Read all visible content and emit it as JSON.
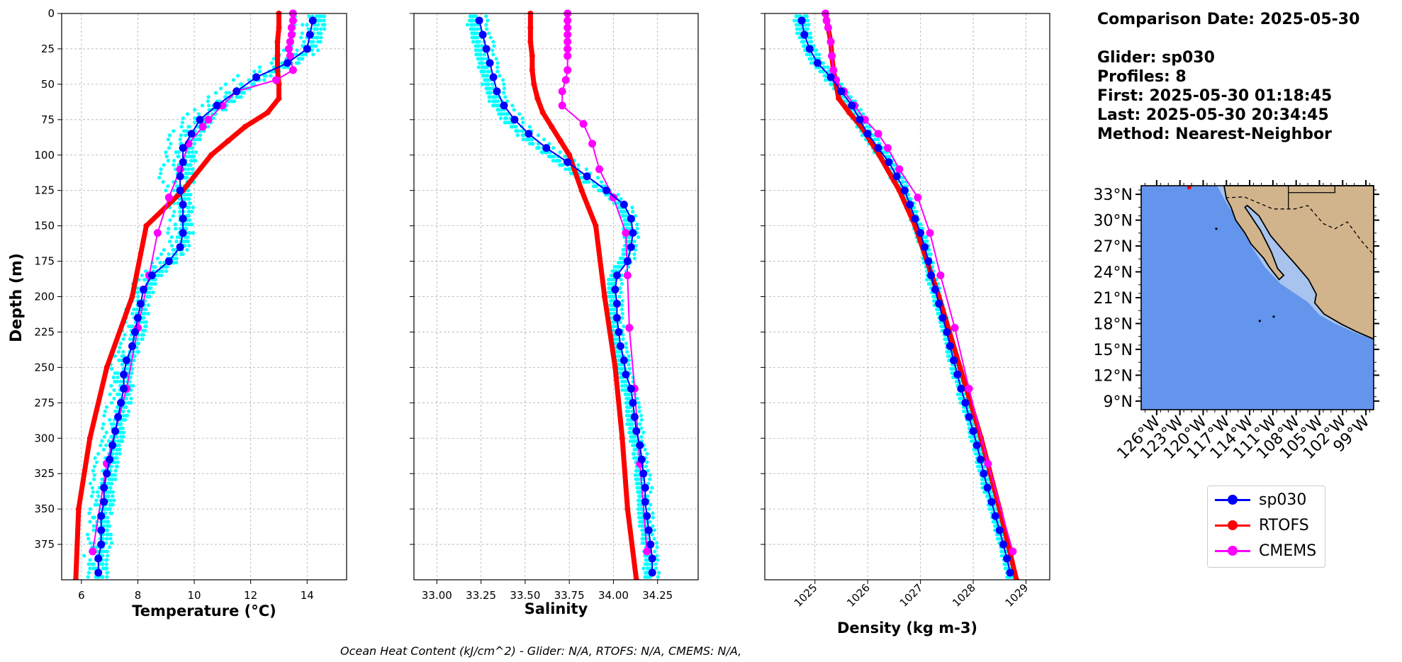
{
  "info": {
    "comparison_date": "Comparison Date: 2025-05-30",
    "glider": "Glider: sp030",
    "profiles": "Profiles: 8",
    "first": "First: 2025-05-30 01:18:45",
    "last": "Last: 2025-05-30 20:34:45",
    "method": "Method: Nearest-Neighbor"
  },
  "footnote": "Ocean Heat Content (kJ/cm^2) - Glider: N/A,  RTOFS: N/A,  CMEMS: N/A,",
  "legend": [
    {
      "name": "sp030",
      "color": "#0000ff"
    },
    {
      "name": "RTOFS",
      "color": "#ff0000"
    },
    {
      "name": "CMEMS",
      "color": "#ff00ff"
    }
  ],
  "colors": {
    "glider_raw": "#00ffff",
    "ocean": "#6495ed",
    "land": "#d2b48c",
    "shelf": "#a8c4ee"
  },
  "chart_data": [
    {
      "type": "line",
      "xlabel": "Temperature (°C)",
      "ylabel": "Depth (m)",
      "xlim": [
        5.3,
        15.4
      ],
      "ylim": [
        400,
        0
      ],
      "x_ticks": [
        "6",
        "8",
        "10",
        "12",
        "14"
      ],
      "y_ticks": [
        "0",
        "25",
        "50",
        "75",
        "100",
        "125",
        "150",
        "175",
        "200",
        "225",
        "250",
        "275",
        "300",
        "325",
        "350",
        "375"
      ],
      "grid": true,
      "series": [
        {
          "name": "RTOFS",
          "depth": [
            0,
            10,
            20,
            30,
            40,
            50,
            60,
            70,
            80,
            90,
            100,
            125,
            150,
            200,
            250,
            300,
            350,
            400
          ],
          "values": [
            13.0,
            13.0,
            12.95,
            12.95,
            12.95,
            13.0,
            13.0,
            12.6,
            11.8,
            11.2,
            10.6,
            9.6,
            8.3,
            7.8,
            6.9,
            6.3,
            5.9,
            5.8
          ]
        },
        {
          "name": "sp030",
          "depth": [
            5,
            15,
            25,
            35,
            45,
            55,
            65,
            75,
            85,
            95,
            105,
            115,
            125,
            135,
            145,
            155,
            165,
            175,
            185,
            195,
            205,
            215,
            225,
            235,
            245,
            255,
            265,
            275,
            285,
            295,
            305,
            315,
            325,
            335,
            345,
            355,
            365,
            375,
            385,
            395
          ],
          "values": [
            14.2,
            14.1,
            14.0,
            13.3,
            12.2,
            11.5,
            10.8,
            10.2,
            9.9,
            9.6,
            9.6,
            9.5,
            9.5,
            9.6,
            9.6,
            9.6,
            9.5,
            9.1,
            8.5,
            8.2,
            8.1,
            8.0,
            7.9,
            7.8,
            7.6,
            7.5,
            7.5,
            7.4,
            7.3,
            7.2,
            7.1,
            7.0,
            6.9,
            6.8,
            6.8,
            6.7,
            6.7,
            6.7,
            6.6,
            6.6
          ]
        },
        {
          "name": "CMEMS",
          "depth": [
            0,
            5,
            10,
            15,
            20,
            25,
            30,
            40,
            47,
            55,
            65,
            75,
            80,
            92,
            110,
            130,
            155,
            185,
            222,
            265,
            318,
            380
          ],
          "values": [
            13.5,
            13.5,
            13.45,
            13.45,
            13.4,
            13.35,
            13.4,
            13.5,
            12.9,
            11.5,
            11.0,
            10.5,
            10.3,
            9.8,
            9.5,
            9.1,
            8.7,
            8.4,
            8.0,
            7.6,
            6.9,
            6.4
          ]
        }
      ]
    },
    {
      "type": "line",
      "xlabel": "Salinity",
      "xlim": [
        32.87,
        34.48
      ],
      "ylim": [
        400,
        0
      ],
      "x_ticks": [
        "33.00",
        "33.25",
        "33.50",
        "33.75",
        "34.00",
        "34.25"
      ],
      "grid": true,
      "series": [
        {
          "name": "RTOFS",
          "depth": [
            0,
            10,
            20,
            30,
            40,
            50,
            60,
            70,
            80,
            90,
            100,
            125,
            150,
            200,
            250,
            300,
            350,
            400
          ],
          "values": [
            33.53,
            33.53,
            33.53,
            33.54,
            33.54,
            33.55,
            33.57,
            33.6,
            33.65,
            33.7,
            33.75,
            33.82,
            33.9,
            33.95,
            34.01,
            34.05,
            34.08,
            34.13
          ]
        },
        {
          "name": "sp030",
          "depth": [
            5,
            15,
            25,
            35,
            45,
            55,
            65,
            75,
            85,
            95,
            105,
            115,
            125,
            135,
            145,
            155,
            165,
            175,
            185,
            195,
            205,
            215,
            225,
            235,
            245,
            255,
            265,
            275,
            285,
            295,
            305,
            315,
            325,
            335,
            345,
            355,
            365,
            375,
            385,
            395
          ],
          "values": [
            33.24,
            33.26,
            33.28,
            33.3,
            33.32,
            33.34,
            33.38,
            33.44,
            33.52,
            33.62,
            33.74,
            33.85,
            33.96,
            34.06,
            34.1,
            34.11,
            34.1,
            34.08,
            34.02,
            34.01,
            34.02,
            34.02,
            34.03,
            34.04,
            34.06,
            34.07,
            34.1,
            34.11,
            34.12,
            34.13,
            34.15,
            34.16,
            34.17,
            34.18,
            34.18,
            34.19,
            34.2,
            34.21,
            34.22,
            34.22
          ]
        },
        {
          "name": "CMEMS",
          "depth": [
            0,
            5,
            10,
            15,
            20,
            25,
            30,
            40,
            47,
            55,
            65,
            78,
            92,
            110,
            130,
            155,
            185,
            222,
            265,
            318,
            380
          ],
          "values": [
            33.74,
            33.74,
            33.74,
            33.74,
            33.74,
            33.74,
            33.74,
            33.74,
            33.73,
            33.71,
            33.71,
            33.83,
            33.88,
            33.92,
            34.0,
            34.07,
            34.08,
            34.09,
            34.12,
            34.15,
            34.19
          ]
        }
      ]
    },
    {
      "type": "line",
      "xlabel": "Density (kg m-3)",
      "xlim": [
        1024.05,
        1029.45
      ],
      "ylim": [
        400,
        0
      ],
      "x_ticks": [
        "1025",
        "1026",
        "1027",
        "1028",
        "1029"
      ],
      "grid": true,
      "series": [
        {
          "name": "RTOFS",
          "depth": [
            0,
            10,
            20,
            30,
            40,
            50,
            60,
            70,
            80,
            90,
            100,
            125,
            150,
            200,
            250,
            300,
            350,
            400
          ],
          "values": [
            1025.2,
            1025.25,
            1025.3,
            1025.32,
            1025.35,
            1025.4,
            1025.45,
            1025.65,
            1025.88,
            1026.05,
            1026.22,
            1026.6,
            1026.9,
            1027.35,
            1027.75,
            1028.15,
            1028.5,
            1028.82
          ]
        },
        {
          "name": "sp030",
          "depth": [
            5,
            15,
            25,
            35,
            45,
            55,
            65,
            75,
            85,
            95,
            105,
            115,
            125,
            135,
            145,
            155,
            165,
            175,
            185,
            195,
            205,
            215,
            225,
            235,
            245,
            255,
            265,
            275,
            285,
            295,
            305,
            315,
            325,
            335,
            345,
            355,
            365,
            375,
            385,
            395
          ],
          "values": [
            1024.75,
            1024.8,
            1024.9,
            1025.05,
            1025.3,
            1025.5,
            1025.7,
            1025.85,
            1026.0,
            1026.2,
            1026.4,
            1026.55,
            1026.7,
            1026.8,
            1026.9,
            1027.0,
            1027.08,
            1027.15,
            1027.2,
            1027.28,
            1027.35,
            1027.42,
            1027.5,
            1027.56,
            1027.63,
            1027.7,
            1027.77,
            1027.85,
            1027.92,
            1028.0,
            1028.07,
            1028.14,
            1028.2,
            1028.27,
            1028.35,
            1028.42,
            1028.5,
            1028.57,
            1028.64,
            1028.7
          ]
        },
        {
          "name": "CMEMS",
          "depth": [
            0,
            5,
            10,
            20,
            30,
            40,
            47,
            55,
            65,
            75,
            85,
            95,
            110,
            130,
            155,
            185,
            222,
            265,
            318,
            380
          ],
          "values": [
            1025.2,
            1025.22,
            1025.25,
            1025.3,
            1025.32,
            1025.35,
            1025.4,
            1025.55,
            1025.75,
            1025.95,
            1026.2,
            1026.38,
            1026.6,
            1026.95,
            1027.18,
            1027.38,
            1027.65,
            1027.92,
            1028.28,
            1028.75
          ]
        }
      ]
    },
    {
      "type": "map",
      "lat_ticks": [
        "33°N",
        "30°N",
        "27°N",
        "24°N",
        "21°N",
        "18°N",
        "15°N",
        "12°N",
        "9°N"
      ],
      "lon_ticks": [
        "126°W",
        "123°W",
        "120°W",
        "117°W",
        "114°W",
        "111°W",
        "108°W",
        "105°W",
        "102°W",
        "99°W"
      ],
      "lat_range": [
        8,
        34
      ],
      "lon_range": [
        -128,
        -98
      ]
    }
  ]
}
